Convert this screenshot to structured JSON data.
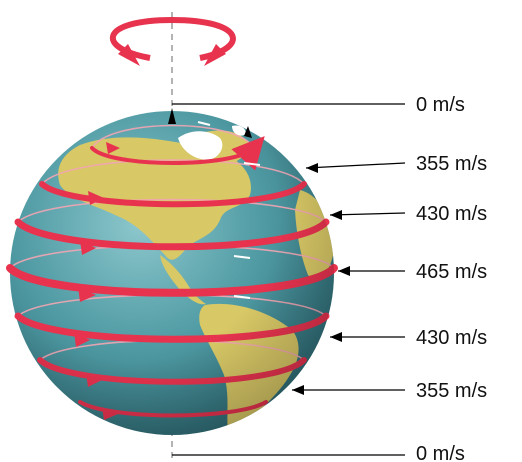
{
  "diagram": {
    "speed_labels": [
      "0 m/s",
      "355 m/s",
      "430 m/s",
      "465 m/s",
      "430 m/s",
      "355 m/s",
      "0 m/s"
    ]
  },
  "colors": {
    "ocean": "#4f9aa3",
    "land": "#d8c866",
    "ice": "#ffffff",
    "rotation_band": "#e8334f",
    "axis": "#9a9a9a",
    "leader": "#000000"
  },
  "icons": {
    "rotation": "rotation-arrow-icon"
  }
}
